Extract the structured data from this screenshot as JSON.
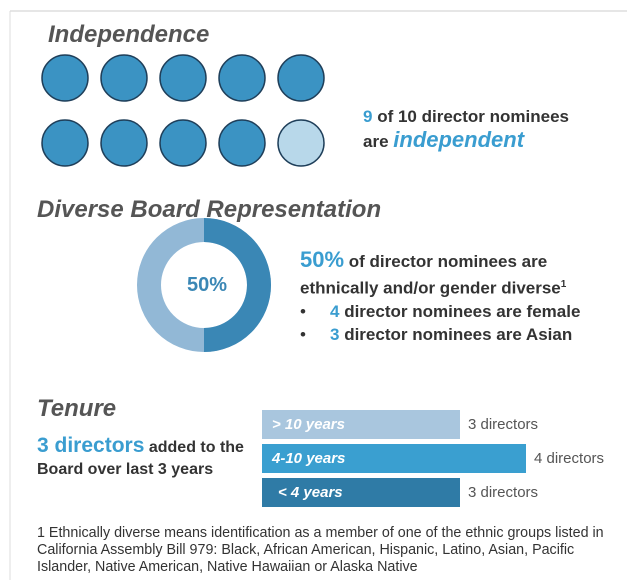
{
  "independence": {
    "title": "Independence",
    "independent": 9,
    "total": 10,
    "rest": "of 10 director nominees",
    "are": "are",
    "emph": "independent"
  },
  "diversity": {
    "title": "Diverse Board Representation",
    "percent": 50,
    "donut_label": "50%",
    "headline_pct": "50%",
    "headline_rest": "of director nominees are",
    "line2": "ethnically and/or gender diverse",
    "footnote_mark": "1",
    "bullets": [
      {
        "count": 4,
        "text": "director nominees are female"
      },
      {
        "count": 3,
        "text": "director nominees are Asian"
      }
    ]
  },
  "tenure": {
    "title": "Tenure",
    "headline": "3 directors",
    "headline_rest": "added to the Board over last 3 years",
    "bars": [
      {
        "label": "> 10 years",
        "value": 3,
        "value_label": "3 directors",
        "color": "#a9c6de"
      },
      {
        "label": "4-10 years",
        "value": 4,
        "value_label": "4 directors",
        "color": "#3a9fd0"
      },
      {
        "label": "< 4 years",
        "value": 3,
        "value_label": "3 directors",
        "color": "#2f7ba6"
      }
    ]
  },
  "footnote": "1 Ethnically diverse means identification as a member of one of the ethnic groups listed in California Assembly Bill 979: Black, African American, Hispanic, Latino, Asian, Pacific Islander, Native American, Native Hawaiian or Alaska Native"
}
